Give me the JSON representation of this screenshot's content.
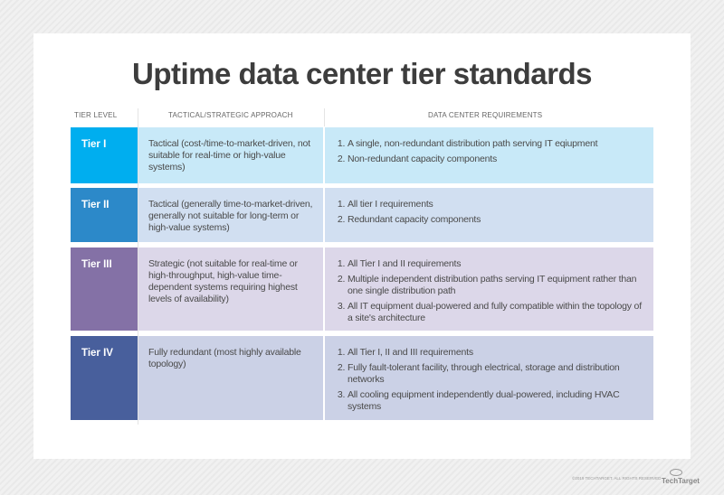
{
  "title": "Uptime data center tier standards",
  "headers": [
    "TIER LEVEL",
    "TACTICAL/STRATEGIC APPROACH",
    "DATA CENTER REQUIREMENTS"
  ],
  "rows": [
    {
      "tier": "Tier I",
      "tier_color": "#00aeef",
      "body_color": "#c8e9f8",
      "approach": "Tactical (cost-/time-to-market-driven, not suitable for real-time or high-value systems)",
      "requirements": [
        "A single, non-redundant distribution path serving IT eqiupment",
        "Non-redundant capacity components"
      ]
    },
    {
      "tier": "Tier II",
      "tier_color": "#2c89c9",
      "body_color": "#d1dff1",
      "approach": "Tactical (generally time-to-market-driven, generally not suitable for long-term or high-value systems)",
      "requirements": [
        "All tier I requirements",
        "Redundant capacity components"
      ]
    },
    {
      "tier": "Tier III",
      "tier_color": "#8471a6",
      "body_color": "#dcd7e9",
      "approach": "Strategic (not suitable for real-time or high-throughput, high-value time-dependent systems requiring highest levels of availability)",
      "requirements": [
        "All Tier I and II requirements",
        "Multiple independent distribution paths serving IT equipment rather than one single distribution path",
        "All IT equipment dual-powered and fully compatible within the topology of a site's architecture"
      ]
    },
    {
      "tier": "Tier IV",
      "tier_color": "#485f9c",
      "body_color": "#cbd1e6",
      "approach": "Fully redundant (most highly available topology)",
      "requirements": [
        "All Tier I, II and III requirements",
        "Fully fault-tolerant facility, through electrical, storage and distribution networks",
        "All cooling equipment independently dual-powered, including HVAC systems"
      ]
    }
  ],
  "footer": {
    "copyright": "©2019 TECHTARGET. ALL RIGHTS RESERVED",
    "logo": "TechTarget"
  }
}
